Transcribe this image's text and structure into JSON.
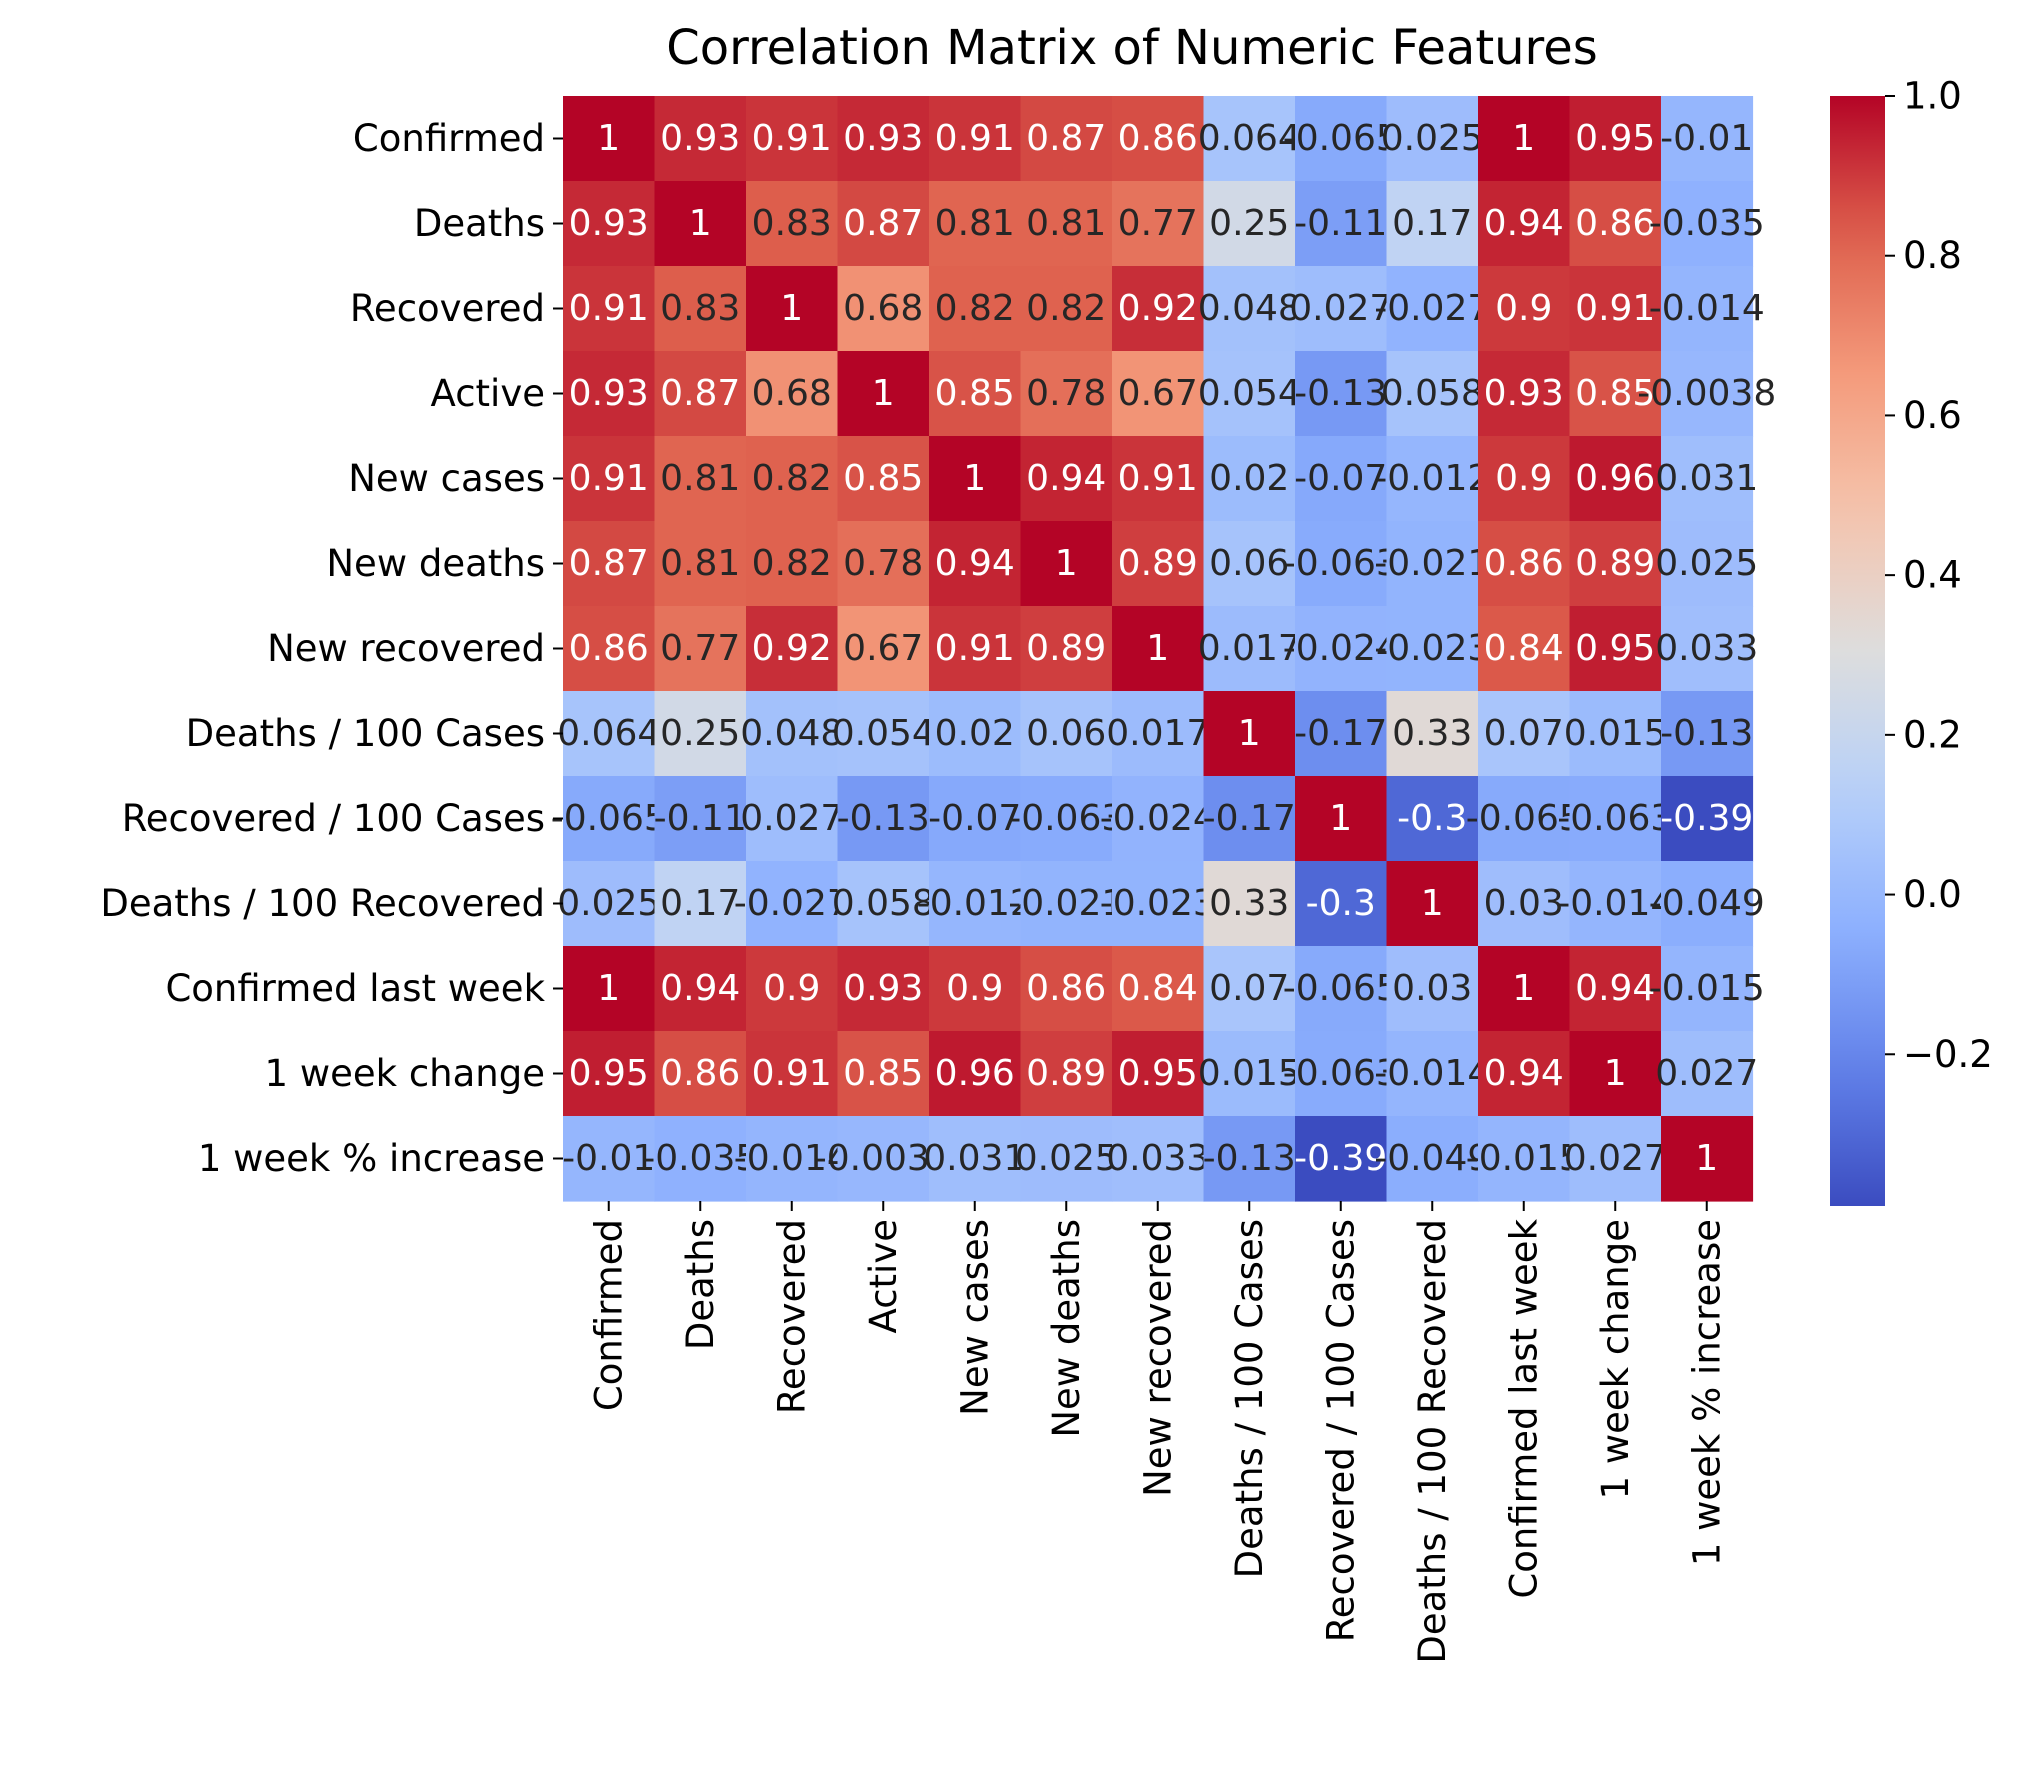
{
  "chart_data": {
    "type": "heatmap",
    "title": "Correlation Matrix of Numeric Features",
    "xlabel": "",
    "ylabel": "",
    "colormap": "coolwarm",
    "vmin": -0.39,
    "vmax": 1.0,
    "colorbar_ticks": [
      1.0,
      0.8,
      0.6,
      0.4,
      0.2,
      0.0,
      -0.2
    ],
    "colorbar_tick_labels": [
      "1.0",
      "0.8",
      "0.6",
      "0.4",
      "0.2",
      "0.0",
      "−0.2"
    ],
    "categories": [
      "Confirmed",
      "Deaths",
      "Recovered",
      "Active",
      "New cases",
      "New deaths",
      "New recovered",
      "Deaths / 100 Cases",
      "Recovered / 100 Cases",
      "Deaths / 100 Recovered",
      "Confirmed last week",
      "1 week change",
      "1 week % increase"
    ],
    "values": [
      [
        1,
        0.93,
        0.91,
        0.93,
        0.91,
        0.87,
        0.86,
        0.064,
        -0.065,
        0.025,
        1,
        0.95,
        -0.01
      ],
      [
        0.93,
        1,
        0.83,
        0.87,
        0.81,
        0.81,
        0.77,
        0.25,
        -0.11,
        0.17,
        0.94,
        0.86,
        -0.035
      ],
      [
        0.91,
        0.83,
        1,
        0.68,
        0.82,
        0.82,
        0.92,
        0.048,
        0.027,
        -0.027,
        0.9,
        0.91,
        -0.014
      ],
      [
        0.93,
        0.87,
        0.68,
        1,
        0.85,
        0.78,
        0.67,
        0.054,
        -0.13,
        0.058,
        0.93,
        0.85,
        -0.0038
      ],
      [
        0.91,
        0.81,
        0.82,
        0.85,
        1,
        0.94,
        0.91,
        0.02,
        -0.07,
        -0.012,
        0.9,
        0.96,
        0.031
      ],
      [
        0.87,
        0.81,
        0.82,
        0.78,
        0.94,
        1,
        0.89,
        0.06,
        -0.063,
        -0.021,
        0.86,
        0.89,
        0.025
      ],
      [
        0.86,
        0.77,
        0.92,
        0.67,
        0.91,
        0.89,
        1,
        0.017,
        -0.024,
        -0.023,
        0.84,
        0.95,
        0.033
      ],
      [
        0.064,
        0.25,
        0.048,
        0.054,
        0.02,
        0.06,
        0.017,
        1,
        -0.17,
        0.33,
        0.07,
        0.015,
        -0.13
      ],
      [
        -0.065,
        -0.11,
        0.027,
        -0.13,
        -0.07,
        -0.063,
        -0.024,
        -0.17,
        1,
        -0.3,
        -0.065,
        -0.063,
        -0.39
      ],
      [
        0.025,
        0.17,
        -0.027,
        0.058,
        -0.012,
        -0.021,
        -0.023,
        0.33,
        -0.3,
        1,
        0.03,
        -0.014,
        -0.049
      ],
      [
        1,
        0.94,
        0.9,
        0.93,
        0.9,
        0.86,
        0.84,
        0.07,
        -0.065,
        0.03,
        1,
        0.94,
        -0.015
      ],
      [
        0.95,
        0.86,
        0.91,
        0.85,
        0.96,
        0.89,
        0.95,
        0.015,
        -0.063,
        -0.014,
        0.94,
        1,
        0.027
      ],
      [
        -0.01,
        -0.035,
        -0.014,
        -0.0038,
        0.031,
        0.025,
        0.033,
        -0.13,
        -0.39,
        -0.049,
        -0.015,
        0.027,
        1
      ]
    ]
  }
}
